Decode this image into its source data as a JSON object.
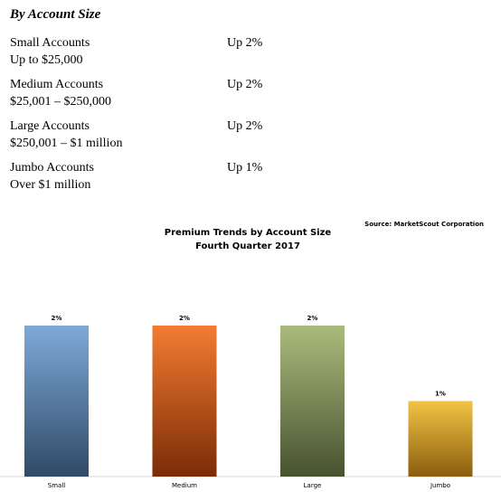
{
  "section": {
    "heading": "By Account Size",
    "rows": [
      {
        "name": "Small Accounts",
        "range": "Up to $25,000",
        "change": "Up 2%"
      },
      {
        "name": "Medium Accounts",
        "range": "$25,001 – $250,000",
        "change": "Up 2%"
      },
      {
        "name": "Large Accounts",
        "range": "$250,001 – $1 million",
        "change": "Up 2%"
      },
      {
        "name": "Jumbo Accounts",
        "range": "Over $1 million",
        "change": "Up 1%"
      }
    ]
  },
  "chart_data": {
    "type": "bar",
    "title": "Premium Trends by Account Size",
    "subtitle": "Fourth Quarter 2017",
    "source": "Source: MarketScout Corporation",
    "categories": [
      "Small",
      "Medium",
      "Large",
      "Jumbo"
    ],
    "values": [
      2,
      2,
      2,
      1
    ],
    "value_labels": [
      "2%",
      "2%",
      "2%",
      "1%"
    ],
    "colors": [
      [
        "#7eaad8",
        "#2f4a66"
      ],
      [
        "#f47c32",
        "#7a2c06"
      ],
      [
        "#abbb7c",
        "#475230"
      ],
      [
        "#f2c444",
        "#8a5e0e"
      ]
    ]
  }
}
